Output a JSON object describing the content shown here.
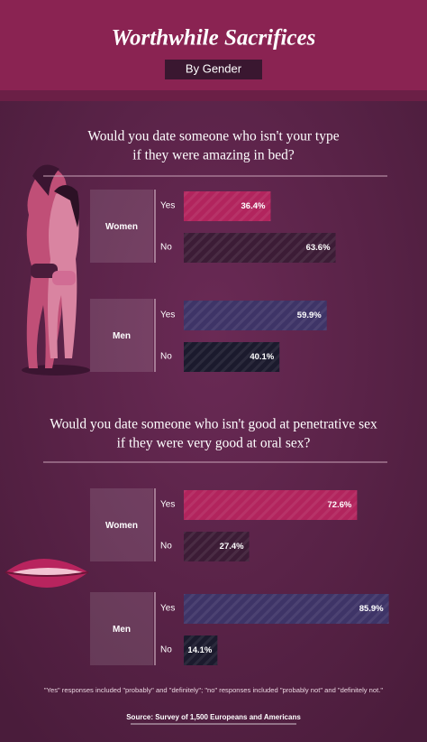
{
  "title": "Worthwhile Sacrifices",
  "subtitle": "By Gender",
  "chart_data": [
    {
      "type": "bar",
      "title": [
        "Would you date someone who isn't your type",
        "if they were amazing in bed?"
      ],
      "categories": [
        "Yes",
        "No"
      ],
      "series": [
        {
          "name": "Women",
          "colors": [
            "#b2245d",
            "#3c1c36"
          ],
          "values": [
            36.4,
            63.6
          ],
          "value_labels": [
            "36.4%",
            "63.6%"
          ]
        },
        {
          "name": "Men",
          "colors": [
            "#3e3467",
            "#1b1a2d"
          ],
          "values": [
            59.9,
            40.1
          ],
          "value_labels": [
            "59.9%",
            "40.1%"
          ]
        }
      ]
    },
    {
      "type": "bar",
      "title": [
        "Would you date someone who isn't good at penetrative sex",
        "if they were very good at oral sex?"
      ],
      "categories": [
        "Yes",
        "No"
      ],
      "series": [
        {
          "name": "Women",
          "colors": [
            "#b2245d",
            "#3c1c36"
          ],
          "values": [
            72.6,
            27.4
          ],
          "value_labels": [
            "72.6%",
            "27.4%"
          ]
        },
        {
          "name": "Men",
          "colors": [
            "#3e3467",
            "#1b1a2d"
          ],
          "values": [
            85.9,
            14.1
          ],
          "value_labels": [
            "85.9%",
            "14.1%"
          ]
        }
      ]
    }
  ],
  "footnote": "\"Yes\" responses included \"probably\" and \"definitely\"; \"no\" responses included \"probably not\" and \"definitely not.\"",
  "source": "Source: Survey of 1,500 Europeans and Americans"
}
